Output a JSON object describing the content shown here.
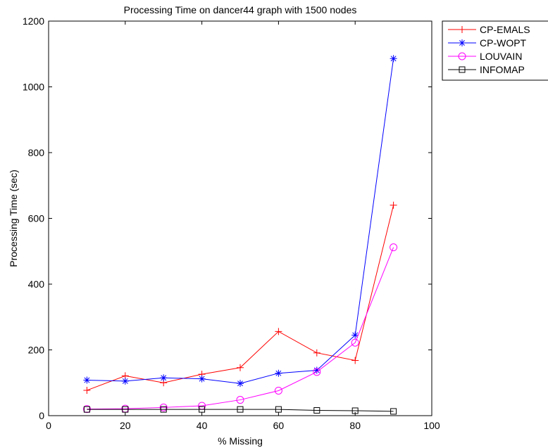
{
  "chart_data": {
    "type": "line",
    "title": "Processing Time on dancer44 graph with 1500 nodes",
    "xlabel": "% Missing",
    "ylabel": "Processing Time (sec)",
    "xlim": [
      0,
      100
    ],
    "ylim": [
      0,
      1200
    ],
    "xticks": [
      0,
      20,
      40,
      60,
      80,
      100
    ],
    "yticks": [
      0,
      200,
      400,
      600,
      800,
      1000,
      1200
    ],
    "grid": false,
    "legend_position": "outside top-right",
    "x": [
      10,
      20,
      30,
      40,
      50,
      60,
      70,
      80,
      90
    ],
    "series": [
      {
        "name": "CP-EMALS",
        "color": "#ff0000",
        "marker": "plus",
        "values": [
          77,
          121,
          100,
          126,
          146,
          256,
          191,
          168,
          640
        ]
      },
      {
        "name": "CP-WOPT",
        "color": "#0000ff",
        "marker": "asterisk",
        "values": [
          108,
          105,
          115,
          112,
          98,
          129,
          138,
          245,
          1086
        ]
      },
      {
        "name": "LOUVAIN",
        "color": "#ff00ff",
        "marker": "circle",
        "values": [
          20,
          21,
          25,
          30,
          48,
          76,
          133,
          222,
          512
        ]
      },
      {
        "name": "INFOMAP",
        "color": "#000000",
        "marker": "square",
        "values": [
          19,
          19,
          19,
          19,
          19,
          19,
          16,
          15,
          13
        ]
      }
    ]
  }
}
